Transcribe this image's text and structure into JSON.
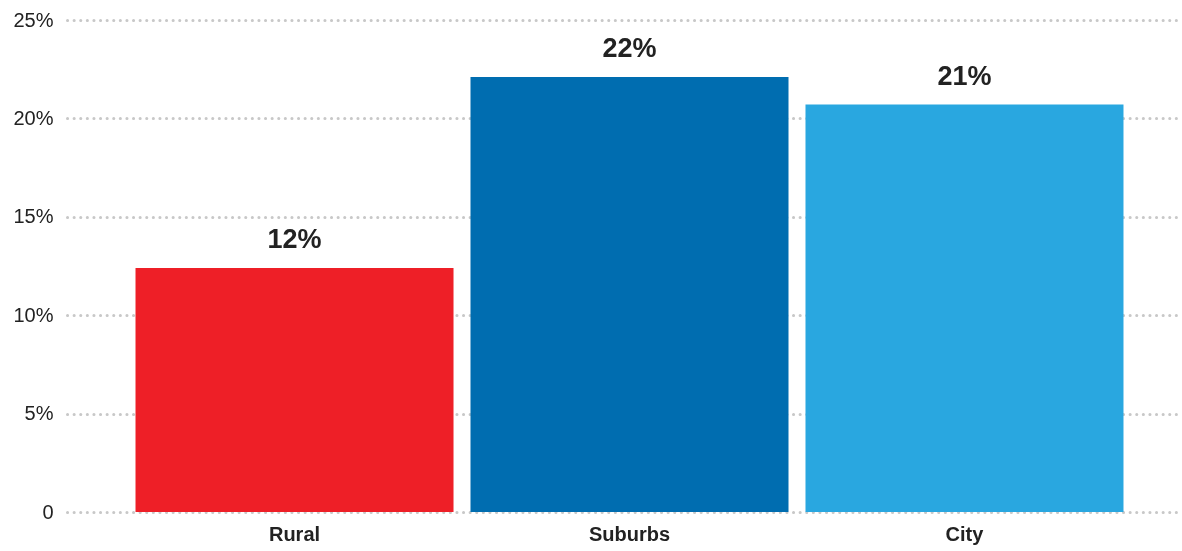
{
  "chart_data": {
    "type": "bar",
    "categories": [
      "Rural",
      "Suburbs",
      "City"
    ],
    "values": [
      12.4,
      22.1,
      20.7
    ],
    "colors": [
      "#ee1f27",
      "#006db0",
      "#29a7e0"
    ],
    "value_labels": [
      "12%",
      "22%",
      "21%"
    ],
    "ylim": [
      0,
      25
    ],
    "yticks": [
      0,
      {
        "value": 5,
        "label": "5%"
      },
      {
        "value": 10,
        "label": "10%"
      },
      {
        "value": 15,
        "label": "15%"
      },
      {
        "value": 20,
        "label": "20%"
      },
      {
        "value": 25,
        "label": "25%"
      }
    ],
    "grid": "y"
  }
}
